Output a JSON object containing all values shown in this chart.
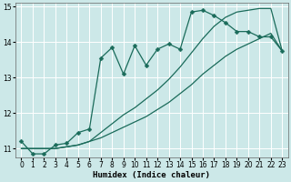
{
  "xlabel": "Humidex (Indice chaleur)",
  "xlim": [
    -0.5,
    23.5
  ],
  "ylim": [
    10.75,
    15.1
  ],
  "yticks": [
    11,
    12,
    13,
    14,
    15
  ],
  "xticks": [
    0,
    1,
    2,
    3,
    4,
    5,
    6,
    7,
    8,
    9,
    10,
    11,
    12,
    13,
    14,
    15,
    16,
    17,
    18,
    19,
    20,
    21,
    22,
    23
  ],
  "bg_color": "#cce8e8",
  "grid_color": "#ffffff",
  "line_color": "#1a6b5a",
  "line1_x": [
    0,
    1,
    2,
    3,
    4,
    5,
    6,
    7,
    8,
    9,
    10,
    11,
    12,
    13,
    14,
    15,
    16,
    17,
    18,
    19,
    20,
    21,
    22,
    23
  ],
  "line1_y": [
    11.2,
    10.85,
    10.85,
    11.1,
    11.15,
    11.45,
    11.55,
    13.55,
    13.85,
    13.1,
    13.9,
    13.35,
    13.8,
    13.95,
    13.8,
    14.85,
    14.9,
    14.75,
    14.55,
    14.3,
    14.3,
    14.15,
    14.15,
    13.75
  ],
  "line2_x": [
    0,
    1,
    2,
    3,
    4,
    5,
    6,
    7,
    8,
    9,
    10,
    11,
    12,
    13,
    14,
    15,
    16,
    17,
    18,
    19,
    20,
    21,
    22,
    23
  ],
  "line2_y": [
    11.0,
    11.0,
    11.0,
    11.0,
    11.05,
    11.1,
    11.2,
    11.45,
    11.7,
    11.95,
    12.15,
    12.4,
    12.65,
    12.95,
    13.3,
    13.7,
    14.1,
    14.45,
    14.7,
    14.85,
    14.9,
    14.95,
    14.95,
    13.75
  ],
  "line3_x": [
    0,
    1,
    2,
    3,
    4,
    5,
    6,
    7,
    8,
    9,
    10,
    11,
    12,
    13,
    14,
    15,
    16,
    17,
    18,
    19,
    20,
    21,
    22,
    23
  ],
  "line3_y": [
    11.0,
    11.0,
    11.0,
    11.0,
    11.05,
    11.1,
    11.2,
    11.3,
    11.45,
    11.6,
    11.75,
    11.9,
    12.1,
    12.3,
    12.55,
    12.8,
    13.1,
    13.35,
    13.6,
    13.8,
    13.95,
    14.1,
    14.25,
    13.75
  ]
}
